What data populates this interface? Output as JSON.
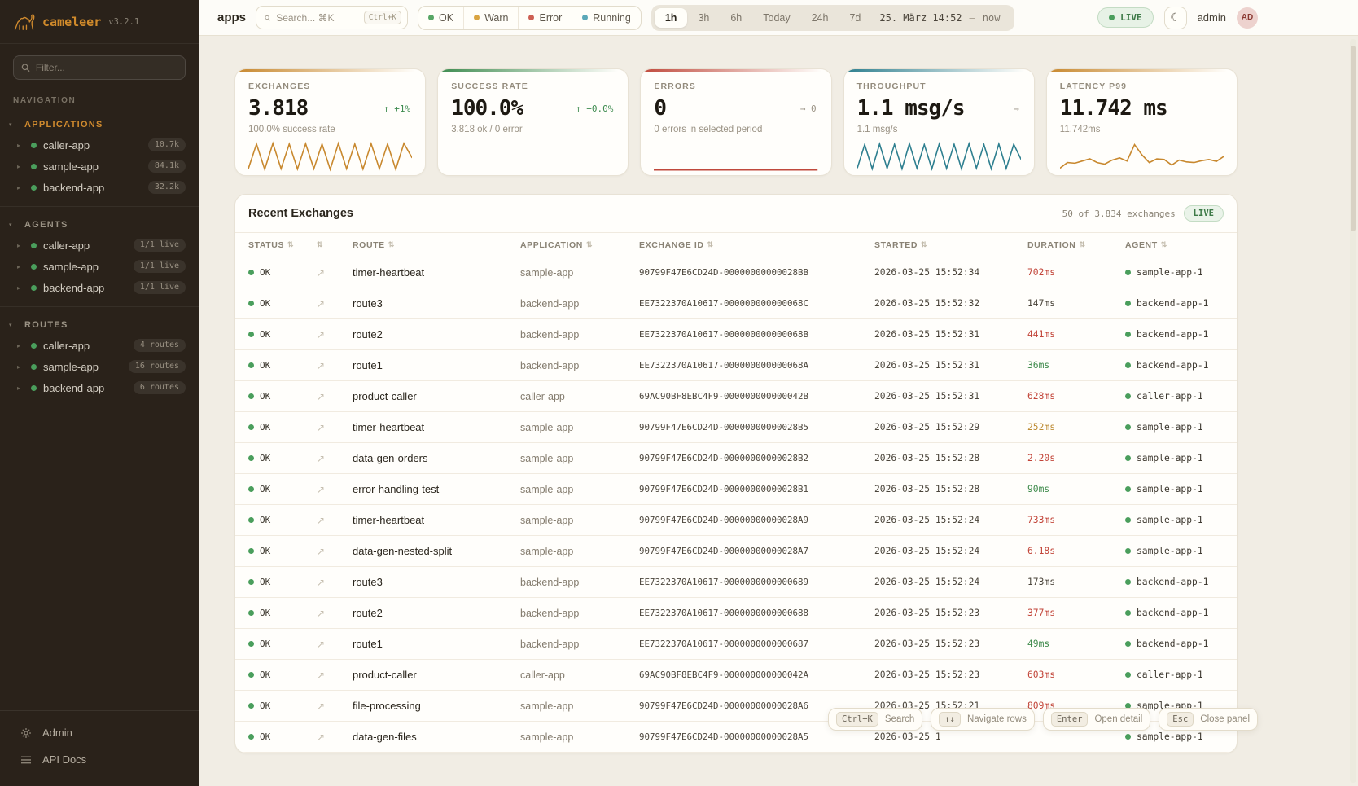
{
  "sidebar": {
    "logo_text": "cameleer",
    "version": "v3.2.1",
    "filter_placeholder": "Filter...",
    "nav_label": "NAVIGATION",
    "sections": [
      {
        "title": "APPLICATIONS",
        "accent": true,
        "items": [
          {
            "name": "caller-app",
            "badge": "10.7k"
          },
          {
            "name": "sample-app",
            "badge": "84.1k"
          },
          {
            "name": "backend-app",
            "badge": "32.2k"
          }
        ]
      },
      {
        "title": "AGENTS",
        "accent": false,
        "items": [
          {
            "name": "caller-app",
            "badge": "1/1 live"
          },
          {
            "name": "sample-app",
            "badge": "1/1 live"
          },
          {
            "name": "backend-app",
            "badge": "1/1 live"
          }
        ]
      },
      {
        "title": "ROUTES",
        "accent": false,
        "items": [
          {
            "name": "caller-app",
            "badge": "4 routes"
          },
          {
            "name": "sample-app",
            "badge": "16 routes"
          },
          {
            "name": "backend-app",
            "badge": "6 routes"
          }
        ]
      }
    ],
    "footer": [
      {
        "icon": "gear-icon",
        "label": "Admin"
      },
      {
        "icon": "menu-icon",
        "label": "API Docs"
      }
    ]
  },
  "topbar": {
    "breadcrumb": "apps",
    "search_placeholder": "Search... ⌘K",
    "search_shortcut": "Ctrl+K",
    "status_filters": [
      {
        "label": "OK",
        "color": "#57a665"
      },
      {
        "label": "Warn",
        "color": "#d9a441"
      },
      {
        "label": "Error",
        "color": "#cd5f53"
      },
      {
        "label": "Running",
        "color": "#5ba8b8"
      }
    ],
    "time_ranges": [
      "1h",
      "3h",
      "6h",
      "Today",
      "24h",
      "7d"
    ],
    "active_range": "1h",
    "time_display": "25. März 14:52",
    "time_sep": "—",
    "time_now": "now",
    "live_label": "LIVE",
    "theme_toggle_icon": "☾",
    "user": "admin",
    "avatar": "AD"
  },
  "kpis": [
    {
      "label": "EXCHANGES",
      "value": "3.818",
      "delta": "↑ +1%",
      "delta_color": "green",
      "subtitle": "100.0% success rate",
      "accent": "#c8882e",
      "spark_color": "#c8882e",
      "spark_values": [
        10,
        90,
        8,
        92,
        10,
        90,
        9,
        91,
        10,
        90,
        8,
        92,
        10,
        90,
        9,
        91,
        10,
        90,
        8,
        92,
        45
      ]
    },
    {
      "label": "SUCCESS RATE",
      "value": "100.0%",
      "delta": "↑ +0.0%",
      "delta_color": "green",
      "subtitle": "3.818 ok / 0 error",
      "accent": "#3d8b4f",
      "spark_color": "",
      "spark_values": []
    },
    {
      "label": "ERRORS",
      "value": "0",
      "delta": "→ 0",
      "delta_color": "gray",
      "subtitle": "0 errors in selected period",
      "accent": "#c0493c",
      "spark_color": "#c0493c",
      "spark_values": [
        6,
        6
      ]
    },
    {
      "label": "THROUGHPUT",
      "value": "1.1 msg/s",
      "delta": "→",
      "delta_color": "gray",
      "subtitle": "1.1 msg/s",
      "accent": "#2e7f8f",
      "spark_color": "#2e7f8f",
      "spark_values": [
        12,
        88,
        10,
        90,
        11,
        89,
        10,
        91,
        12,
        88,
        10,
        90,
        11,
        89,
        10,
        91,
        12,
        88,
        10,
        90,
        11,
        89,
        40
      ]
    },
    {
      "label": "LATENCY P99",
      "value": "11.742 ms",
      "delta": "",
      "delta_color": "gray",
      "subtitle": "11.742ms",
      "accent": "#c8882e",
      "spark_color": "#c8882e",
      "spark_values": [
        12,
        30,
        28,
        35,
        42,
        30,
        25,
        38,
        45,
        35,
        88,
        55,
        30,
        42,
        40,
        22,
        38,
        32,
        30,
        36,
        40,
        34,
        50
      ]
    }
  ],
  "table": {
    "title": "Recent Exchanges",
    "summary": "50 of 3.834 exchanges",
    "live_label": "LIVE",
    "columns": [
      "STATUS",
      "",
      "ROUTE",
      "APPLICATION",
      "EXCHANGE ID",
      "STARTED",
      "DURATION",
      "AGENT"
    ],
    "rows": [
      {
        "status": "OK",
        "route": "timer-heartbeat",
        "app": "sample-app",
        "id": "90799F47E6CD24D-00000000000028BB",
        "started": "2026-03-25 15:52:34",
        "duration": "702ms",
        "duration_class": "red",
        "agent": "sample-app-1"
      },
      {
        "status": "OK",
        "route": "route3",
        "app": "backend-app",
        "id": "EE7322370A10617-000000000000068C",
        "started": "2026-03-25 15:52:32",
        "duration": "147ms",
        "duration_class": "neutral",
        "agent": "backend-app-1"
      },
      {
        "status": "OK",
        "route": "route2",
        "app": "backend-app",
        "id": "EE7322370A10617-000000000000068B",
        "started": "2026-03-25 15:52:31",
        "duration": "441ms",
        "duration_class": "red",
        "agent": "backend-app-1"
      },
      {
        "status": "OK",
        "route": "route1",
        "app": "backend-app",
        "id": "EE7322370A10617-000000000000068A",
        "started": "2026-03-25 15:52:31",
        "duration": "36ms",
        "duration_class": "green",
        "agent": "backend-app-1"
      },
      {
        "status": "OK",
        "route": "product-caller",
        "app": "caller-app",
        "id": "69AC90BF8EBC4F9-000000000000042B",
        "started": "2026-03-25 15:52:31",
        "duration": "628ms",
        "duration_class": "red",
        "agent": "caller-app-1"
      },
      {
        "status": "OK",
        "route": "timer-heartbeat",
        "app": "sample-app",
        "id": "90799F47E6CD24D-00000000000028B5",
        "started": "2026-03-25 15:52:29",
        "duration": "252ms",
        "duration_class": "warn",
        "agent": "sample-app-1"
      },
      {
        "status": "OK",
        "route": "data-gen-orders",
        "app": "sample-app",
        "id": "90799F47E6CD24D-00000000000028B2",
        "started": "2026-03-25 15:52:28",
        "duration": "2.20s",
        "duration_class": "red",
        "agent": "sample-app-1"
      },
      {
        "status": "OK",
        "route": "error-handling-test",
        "app": "sample-app",
        "id": "90799F47E6CD24D-00000000000028B1",
        "started": "2026-03-25 15:52:28",
        "duration": "90ms",
        "duration_class": "green",
        "agent": "sample-app-1"
      },
      {
        "status": "OK",
        "route": "timer-heartbeat",
        "app": "sample-app",
        "id": "90799F47E6CD24D-00000000000028A9",
        "started": "2026-03-25 15:52:24",
        "duration": "733ms",
        "duration_class": "red",
        "agent": "sample-app-1"
      },
      {
        "status": "OK",
        "route": "data-gen-nested-split",
        "app": "sample-app",
        "id": "90799F47E6CD24D-00000000000028A7",
        "started": "2026-03-25 15:52:24",
        "duration": "6.18s",
        "duration_class": "red",
        "agent": "sample-app-1"
      },
      {
        "status": "OK",
        "route": "route3",
        "app": "backend-app",
        "id": "EE7322370A10617-0000000000000689",
        "started": "2026-03-25 15:52:24",
        "duration": "173ms",
        "duration_class": "neutral",
        "agent": "backend-app-1"
      },
      {
        "status": "OK",
        "route": "route2",
        "app": "backend-app",
        "id": "EE7322370A10617-0000000000000688",
        "started": "2026-03-25 15:52:23",
        "duration": "377ms",
        "duration_class": "red",
        "agent": "backend-app-1"
      },
      {
        "status": "OK",
        "route": "route1",
        "app": "backend-app",
        "id": "EE7322370A10617-0000000000000687",
        "started": "2026-03-25 15:52:23",
        "duration": "49ms",
        "duration_class": "green",
        "agent": "backend-app-1"
      },
      {
        "status": "OK",
        "route": "product-caller",
        "app": "caller-app",
        "id": "69AC90BF8EBC4F9-000000000000042A",
        "started": "2026-03-25 15:52:23",
        "duration": "603ms",
        "duration_class": "red",
        "agent": "caller-app-1"
      },
      {
        "status": "OK",
        "route": "file-processing",
        "app": "sample-app",
        "id": "90799F47E6CD24D-00000000000028A6",
        "started": "2026-03-25 15:52:21",
        "duration": "809ms",
        "duration_class": "red",
        "agent": "sample-app-1"
      },
      {
        "status": "OK",
        "route": "data-gen-files",
        "app": "sample-app",
        "id": "90799F47E6CD24D-00000000000028A5",
        "started": "2026-03-25 1",
        "duration": "",
        "duration_class": "neutral",
        "agent": "sample-app-1"
      }
    ]
  },
  "hints": [
    {
      "key": "Ctrl+K",
      "label": "Search"
    },
    {
      "key": "↑↓",
      "label": "Navigate rows"
    },
    {
      "key": "Enter",
      "label": "Open detail"
    },
    {
      "key": "Esc",
      "label": "Close panel"
    }
  ]
}
